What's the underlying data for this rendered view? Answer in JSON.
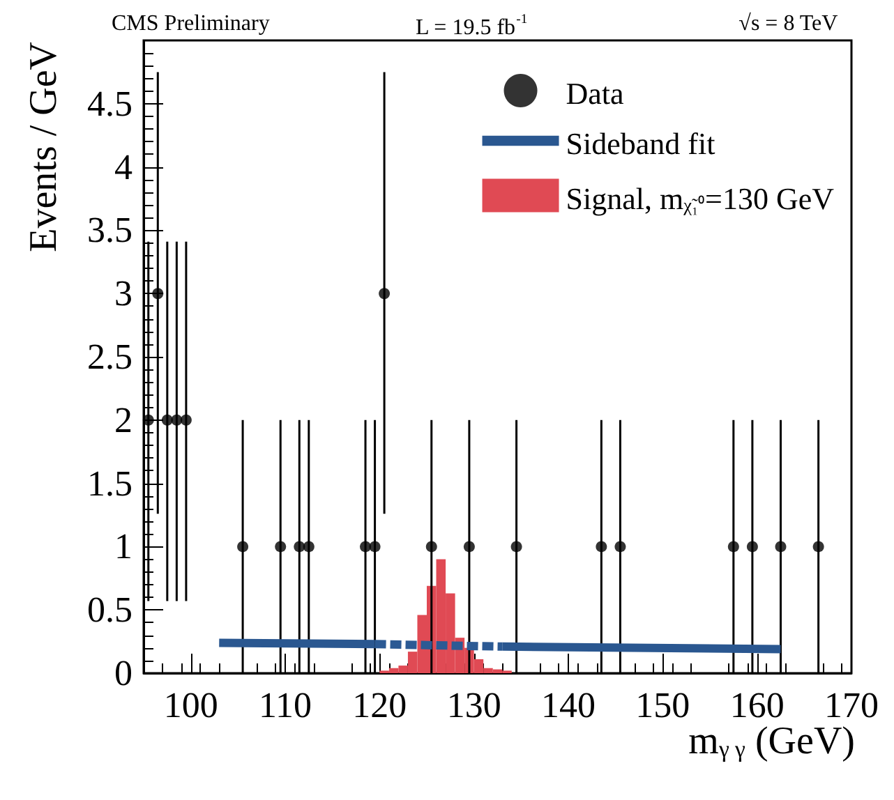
{
  "chart_data": {
    "type": "scatter",
    "xlabel": "m$_{γ γ}$ (GeV)",
    "ylabel": "Events / GeV",
    "annotations": [
      "CMS Preliminary",
      "L = 19.5 fb$^{-1}$",
      "√s = 8 TeV"
    ],
    "xlim": [
      95,
      170
    ],
    "xticks": [
      100,
      110,
      120,
      130,
      140,
      150,
      160,
      170
    ],
    "ylim": [
      0,
      5
    ],
    "yticks": [
      0,
      0.5,
      1,
      1.5,
      2,
      2.5,
      3,
      3.5,
      4,
      4.5
    ],
    "legend": "top right",
    "grid": false,
    "series": [
      {
        "type": "histogram",
        "name": "Signal, m$_{χ̃₁⁰}$=130 GeV",
        "color": "#e04a54",
        "bins": [
          120,
          121,
          122,
          123,
          124,
          125,
          126,
          127,
          128,
          129,
          130,
          131,
          132,
          133,
          134
        ],
        "values": [
          0.02,
          0.04,
          0.06,
          0.17,
          0.46,
          0.69,
          0.9,
          0.63,
          0.28,
          0.2,
          0.11,
          0.04,
          0.03,
          0.02
        ]
      },
      {
        "type": "line",
        "name": "Sideband fit",
        "color": "#2a5790",
        "line_style": "solid",
        "marker": "none",
        "x": [
          103,
          119.5,
          120,
          132.5,
          133,
          162.5
        ],
        "values": [
          0.24,
          0.23,
          null,
          null,
          0.21,
          0.19
        ]
      },
      {
        "type": "line",
        "color": "#2c5a94",
        "line_style": "dashed",
        "marker": "none",
        "x": [
          119.5,
          126,
          133
        ],
        "values": [
          0.23,
          0.22,
          0.21
        ]
      },
      {
        "name": "Data",
        "color": "#000000",
        "marker": "circle",
        "x": [
          95.5,
          96.5,
          97.5,
          98.5,
          99.5,
          105.5,
          109.5,
          111.5,
          112.5,
          118.5,
          119.5,
          120.5,
          125.5,
          129.5,
          134.5,
          143.5,
          145.5,
          157.5,
          159.5,
          162.5,
          166.5
        ],
        "values": [
          2,
          3,
          2,
          2,
          2,
          1,
          1,
          1,
          1,
          1,
          1,
          3,
          1,
          1,
          1,
          1,
          1,
          1,
          1,
          1,
          1
        ],
        "errors": [
          [
            0.57,
            3.41
          ],
          [
            1.26,
            4.75
          ],
          [
            0.57,
            3.41
          ],
          [
            0.57,
            3.41
          ],
          [
            0.57,
            3.41
          ],
          [
            0,
            2
          ],
          [
            0,
            2
          ],
          [
            0,
            2
          ],
          [
            0,
            2
          ],
          [
            0,
            2
          ],
          [
            0,
            2
          ],
          [
            1.26,
            4.75
          ],
          [
            0,
            2
          ],
          [
            0,
            2
          ],
          [
            0,
            2
          ],
          [
            0,
            2
          ],
          [
            0,
            2
          ],
          [
            0,
            2
          ],
          [
            0,
            2
          ],
          [
            0,
            2
          ],
          [
            0,
            2
          ]
        ]
      }
    ]
  }
}
